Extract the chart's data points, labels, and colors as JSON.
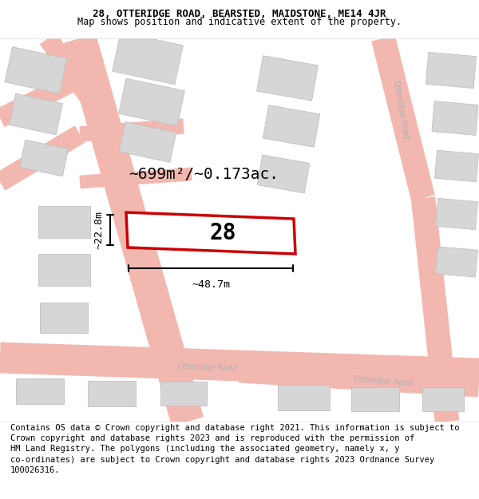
{
  "title_line1": "28, OTTERIDGE ROAD, BEARSTED, MAIDSTONE, ME14 4JR",
  "title_line2": "Map shows position and indicative extent of the property.",
  "footer_text": "Contains OS data © Crown copyright and database right 2021. This information is subject to\nCrown copyright and database rights 2023 and is reproduced with the permission of\nHM Land Registry. The polygons (including the associated geometry, namely x, y\nco-ordinates) are subject to Crown copyright and database rights 2023 Ordnance Survey\n100026316.",
  "area_label": "~699m²/~0.173ac.",
  "width_label": "~48.7m",
  "height_label": "~22.8m",
  "property_number": "28",
  "bg_color": "#ffffff",
  "map_bg": "#f7f7f7",
  "road_color": "#f2b8b0",
  "building_color": "#d6d6d6",
  "building_edge": "#c0c0c0",
  "highlight_color": "#cc0000",
  "road_label_color": "#b0b0b0",
  "title_fontsize": 9.0,
  "subtitle_fontsize": 8.5,
  "footer_fontsize": 7.5,
  "number_fontsize": 20
}
